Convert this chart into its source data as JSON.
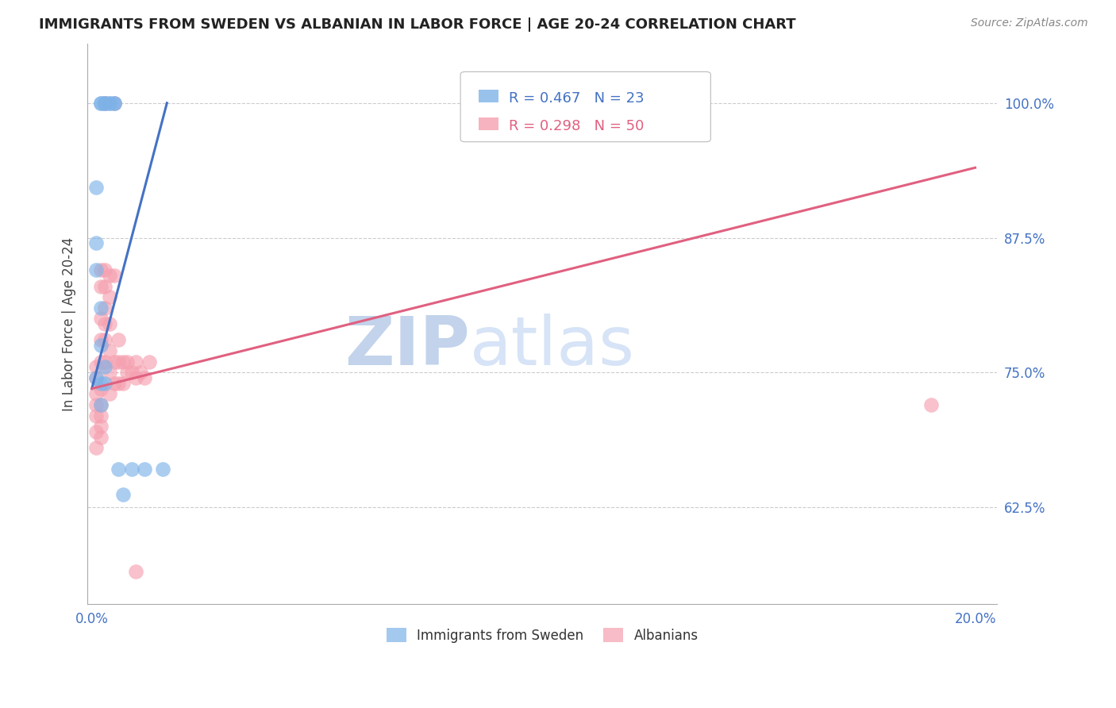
{
  "title": "IMMIGRANTS FROM SWEDEN VS ALBANIAN IN LABOR FORCE | AGE 20-24 CORRELATION CHART",
  "source": "Source: ZipAtlas.com",
  "ylabel": "In Labor Force | Age 20-24",
  "xlim": [
    -0.001,
    0.205
  ],
  "ylim": [
    0.535,
    1.055
  ],
  "sweden_R": 0.467,
  "sweden_N": 23,
  "albanian_R": 0.298,
  "albanian_N": 50,
  "sweden_color": "#7eb3e8",
  "albanian_color": "#f5a0b0",
  "sweden_line_color": "#4472c4",
  "albanian_line_color": "#e06080",
  "watermark_color": "#d0dff5",
  "legend_label_sweden": "Immigrants from Sweden",
  "legend_label_albanian": "Albanians",
  "sweden_x": [
    0.001,
    0.002,
    0.002,
    0.003,
    0.003,
    0.003,
    0.004,
    0.004,
    0.005,
    0.005,
    0.001,
    0.001,
    0.002,
    0.002,
    0.002,
    0.001,
    0.002,
    0.003,
    0.006,
    0.007,
    0.009,
    0.012,
    0.016
  ],
  "sweden_y": [
    0.922,
    1.0,
    1.0,
    1.0,
    1.0,
    0.755,
    1.0,
    1.0,
    1.0,
    1.0,
    0.87,
    0.845,
    0.81,
    0.775,
    0.74,
    0.745,
    0.72,
    0.74,
    0.66,
    0.637,
    0.66,
    0.66,
    0.66
  ],
  "albanian_x": [
    0.001,
    0.001,
    0.001,
    0.001,
    0.002,
    0.002,
    0.002,
    0.002,
    0.002,
    0.002,
    0.003,
    0.003,
    0.003,
    0.003,
    0.003,
    0.004,
    0.004,
    0.004,
    0.004,
    0.004,
    0.005,
    0.005,
    0.001,
    0.001,
    0.001,
    0.002,
    0.002,
    0.002,
    0.002,
    0.003,
    0.003,
    0.003,
    0.004,
    0.005,
    0.005,
    0.006,
    0.006,
    0.006,
    0.007,
    0.007,
    0.008,
    0.008,
    0.009,
    0.01,
    0.01,
    0.011,
    0.012,
    0.013,
    0.19,
    0.01
  ],
  "albanian_y": [
    0.755,
    0.745,
    0.73,
    0.72,
    0.845,
    0.83,
    0.8,
    0.78,
    0.76,
    0.735,
    1.0,
    1.0,
    0.845,
    0.83,
    0.81,
    0.84,
    0.82,
    0.795,
    0.77,
    0.75,
    1.0,
    0.84,
    0.71,
    0.695,
    0.68,
    0.72,
    0.71,
    0.7,
    0.69,
    0.795,
    0.78,
    0.76,
    0.73,
    0.76,
    0.74,
    0.78,
    0.76,
    0.74,
    0.76,
    0.74,
    0.76,
    0.75,
    0.75,
    0.76,
    0.745,
    0.75,
    0.745,
    0.76,
    0.72,
    0.565
  ],
  "sweden_line_x": [
    0.0,
    0.017
  ],
  "sweden_line_y": [
    0.735,
    1.0
  ],
  "albanian_line_x": [
    0.0,
    0.2
  ],
  "albanian_line_y": [
    0.735,
    0.94
  ]
}
